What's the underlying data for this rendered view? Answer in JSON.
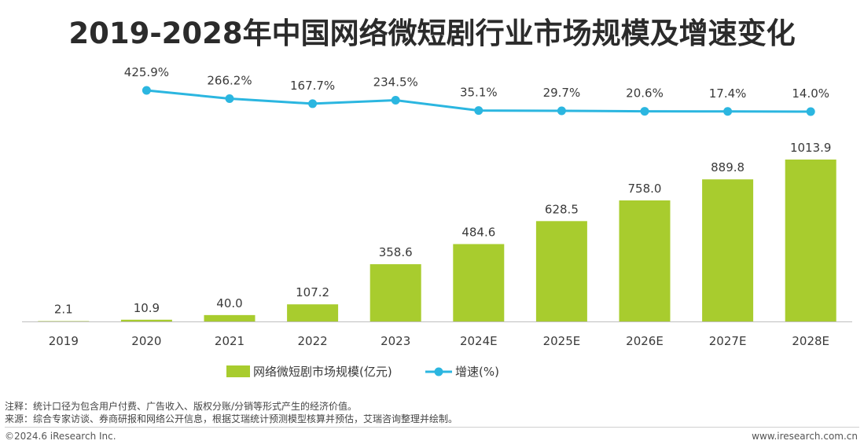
{
  "title": "2019-2028年中国网络微短剧行业市场规模及增速变化",
  "colors": {
    "bar": "#a8cc2e",
    "line": "#2bb6e0",
    "axis": "#bfbfbf",
    "text": "#3a3a3a"
  },
  "chart_data": {
    "type": "bar+line",
    "categories": [
      "2019",
      "2020",
      "2021",
      "2022",
      "2023",
      "2024E",
      "2025E",
      "2026E",
      "2027E",
      "2028E"
    ],
    "series": [
      {
        "name": "网络微短剧市场规模(亿元)",
        "type": "bar",
        "values": [
          2.1,
          10.9,
          40.0,
          107.2,
          358.6,
          484.6,
          628.5,
          758.0,
          889.8,
          1013.9
        ],
        "labels": [
          "2.1",
          "10.9",
          "40.0",
          "107.2",
          "358.6",
          "484.6",
          "628.5",
          "758.0",
          "889.8",
          "1013.9"
        ]
      },
      {
        "name": "增速(%)",
        "type": "line",
        "values": [
          null,
          425.9,
          266.2,
          167.7,
          234.5,
          35.1,
          29.7,
          20.6,
          17.4,
          14.0
        ],
        "labels": [
          "",
          "425.9%",
          "266.2%",
          "167.7%",
          "234.5%",
          "35.1%",
          "29.7%",
          "20.6%",
          "17.4%",
          "14.0%"
        ]
      }
    ],
    "legend_position": "bottom-center",
    "grid": false
  },
  "footer": {
    "note": "注释：统计口径为包含用户付费、广告收入、版权分账/分销等形式产生的经济价值。",
    "source": "来源：综合专家访谈、券商研报和网络公开信息，根据艾瑞统计预测模型核算并预估，艾瑞咨询整理并绘制。",
    "copyright": "©2024.6 iResearch Inc.",
    "website": "www.iresearch.com.cn"
  }
}
